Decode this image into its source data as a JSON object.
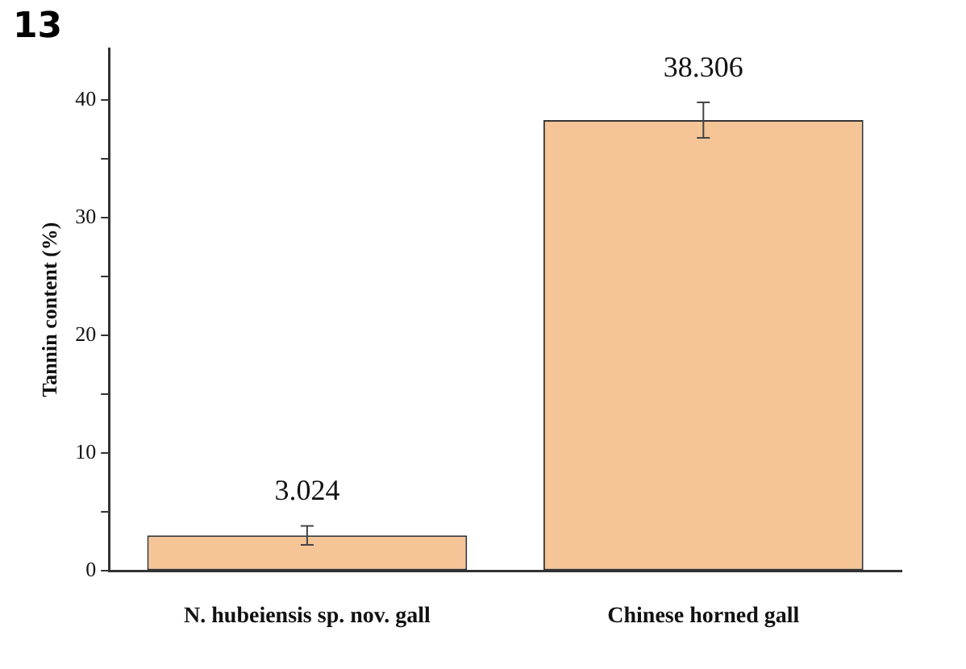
{
  "chart_data": {
    "type": "bar",
    "ylabel": "Tannin content (%)",
    "annotations": [
      "13"
    ],
    "categories": [
      "N. hubeiensis sp. nov. gall",
      "Chinese horned gall"
    ],
    "values": [
      3.024,
      38.306
    ],
    "errors": [
      0.8,
      1.5
    ],
    "color": "#f5c497",
    "data_labels": true,
    "ylim": [
      0,
      44.4
    ],
    "yticks": [
      0,
      {
        "value": 5,
        "label": null
      },
      10,
      {
        "value": 15,
        "label": null
      },
      20,
      {
        "value": 25,
        "label": null
      },
      30,
      {
        "value": 35,
        "label": null
      },
      40
    ],
    "grid": false,
    "legend": false
  }
}
